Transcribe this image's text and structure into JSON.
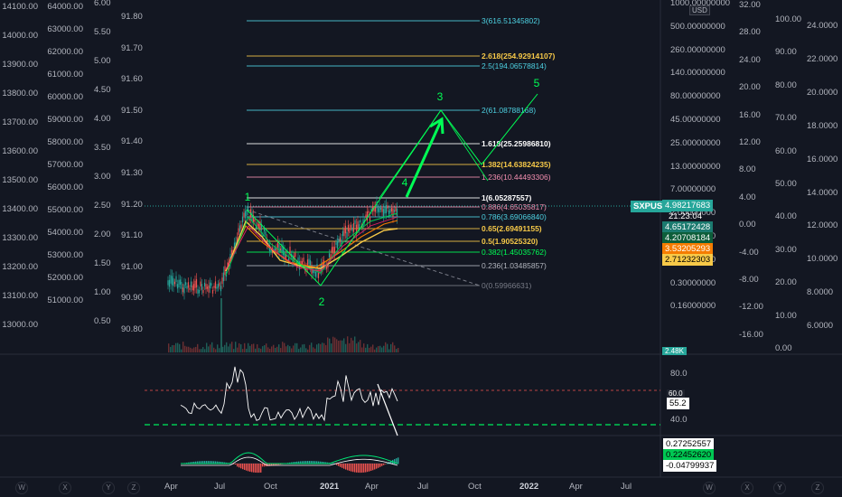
{
  "symbol": "SXPUSD",
  "currency": "USD",
  "countdown": "21:23:04",
  "colors": {
    "background": "#131722",
    "accent_green": "#26a69a",
    "wave_green": "#00ff55",
    "fib_gold": "#f7c948",
    "fib_cyan": "#4dd0e1",
    "fib_pink": "#f48fb1",
    "fib_white": "#ffffff",
    "orange": "#f57c00"
  },
  "waves": [
    "1",
    "2",
    "3",
    "4",
    "5"
  ],
  "fib_levels": [
    {
      "label": "3(616.51345802)",
      "color": "#4dd0e1"
    },
    {
      "label": "2.618(254.92914107)",
      "color": "#f7c948"
    },
    {
      "label": "2.5(194.06578814)",
      "color": "#4dd0e1"
    },
    {
      "label": "2(61.08788168)",
      "color": "#4dd0e1"
    },
    {
      "label": "1.618(25.25986810)",
      "color": "#ffffff"
    },
    {
      "label": "1.382(14.63824235)",
      "color": "#f7c948"
    },
    {
      "label": "1.236(10.44493306)",
      "color": "#f48fb1"
    },
    {
      "label": "1(6.05287557)",
      "color": "#ffffff"
    },
    {
      "label": "0.886(4.65035817)",
      "color": "#f48fb1"
    },
    {
      "label": "0.786(3.69066840)",
      "color": "#4dd0e1"
    },
    {
      "label": "0.65(2.69491155)",
      "color": "#f7c948"
    },
    {
      "label": "0.5(1.90525320)",
      "color": "#f7c948"
    },
    {
      "label": "0.382(1.45035762)",
      "color": "#00ff55"
    },
    {
      "label": "0.236(1.03485857)",
      "color": "#b2b5be"
    },
    {
      "label": "0(0.59966631)",
      "color": "#787b86"
    }
  ],
  "axes": {
    "left1": [
      "14100.00",
      "14000.00",
      "13900.00",
      "13800.00",
      "13700.00",
      "13600.00",
      "13500.00",
      "13400.00",
      "13300.00",
      "13200.00",
      "13100.00",
      "13000.00"
    ],
    "left2": [
      "64000.00",
      "63000.00",
      "62000.00",
      "61000.00",
      "60000.00",
      "59000.00",
      "58000.00",
      "57000.00",
      "56000.00",
      "55000.00",
      "54000.00",
      "53000.00",
      "52000.00",
      "51000.00"
    ],
    "left3": [
      "6.00",
      "5.50",
      "5.00",
      "4.50",
      "4.00",
      "3.50",
      "3.00",
      "2.50",
      "2.00",
      "1.50",
      "1.00",
      "0.50"
    ],
    "left4": [
      "91.80",
      "91.70",
      "91.60",
      "91.50",
      "91.40",
      "91.30",
      "91.20",
      "91.10",
      "91.00",
      "90.90",
      "90.80"
    ],
    "right_log": [
      "1000.00000000",
      "500.00000000",
      "260.00000000",
      "140.00000000",
      "80.00000000",
      "45.00000000",
      "25.00000000",
      "13.00000000",
      "7.00000000",
      "2.00000000",
      "1.00000000",
      "0.55000000",
      "0.30000000",
      "0.16000000"
    ],
    "right2": [
      "32.00",
      "28.00",
      "24.00",
      "20.00",
      "16.00",
      "12.00",
      "8.00",
      "4.00",
      "0.00",
      "-4.00",
      "-8.00",
      "-12.00",
      "-16.00"
    ],
    "right3": [
      "100.00",
      "90.00",
      "80.00",
      "70.00",
      "60.00",
      "50.00",
      "40.00",
      "30.00",
      "20.00",
      "10.00",
      "0.00"
    ],
    "right4": [
      "24.0000",
      "22.0000",
      "20.0000",
      "18.0000",
      "16.0000",
      "14.0000",
      "12.0000",
      "10.0000",
      "8.0000",
      "6.0000"
    ],
    "rsi": [
      "80.0",
      "40.0"
    ],
    "time": [
      "Apr",
      "Jul",
      "Oct",
      "2021",
      "Apr",
      "Jul",
      "Oct",
      "2022",
      "Apr",
      "Jul"
    ]
  },
  "price_tags": {
    "current": "4.98217683",
    "t1": "4.65172428",
    "t2": "4.20708184",
    "t3": "3.53205293",
    "t4": "2.71232303",
    "vol": "2.48K",
    "rsi_val": "55.2",
    "rsi_top": "60.0",
    "macd1": "0.27252557",
    "macd2": "0.22452620",
    "macd3": "-0.04799937"
  },
  "bottom_buttons": [
    "W",
    "X",
    "Y",
    "Z",
    "W",
    "X",
    "Y",
    "Z"
  ]
}
